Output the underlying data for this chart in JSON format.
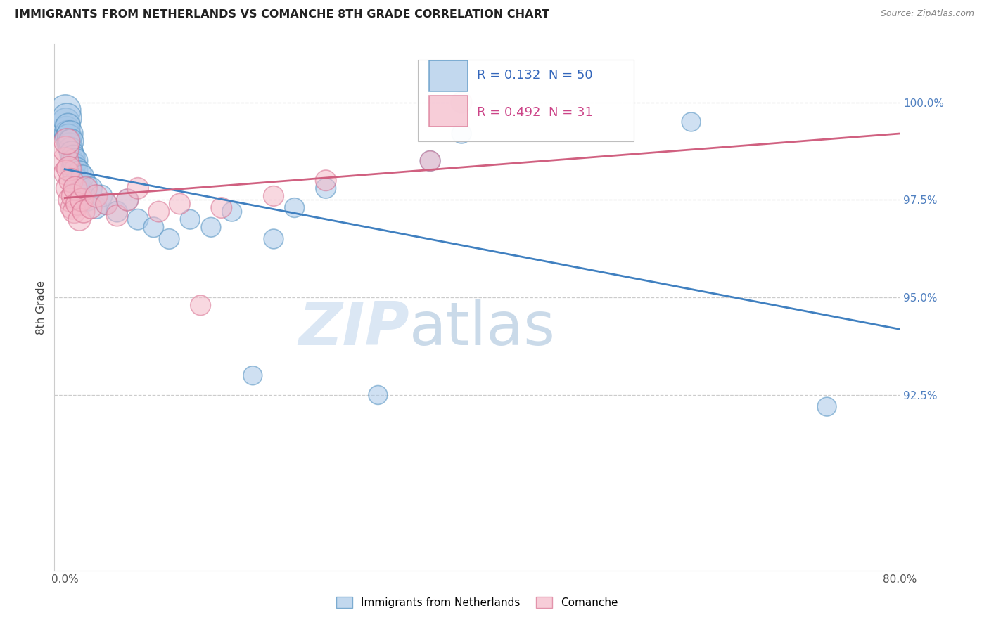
{
  "title": "IMMIGRANTS FROM NETHERLANDS VS COMANCHE 8TH GRADE CORRELATION CHART",
  "source": "Source: ZipAtlas.com",
  "ylabel": "8th Grade",
  "x_tick_labels": [
    "0.0%",
    "",
    "",
    "",
    "",
    "",
    "",
    "",
    "80.0%"
  ],
  "x_tick_vals": [
    0.0,
    10.0,
    20.0,
    30.0,
    40.0,
    50.0,
    60.0,
    70.0,
    80.0
  ],
  "y_tick_labels": [
    "100.0%",
    "97.5%",
    "95.0%",
    "92.5%"
  ],
  "y_tick_vals": [
    100.0,
    97.5,
    95.0,
    92.5
  ],
  "xlim": [
    -1.0,
    80.0
  ],
  "ylim": [
    88.0,
    101.5
  ],
  "blue_R": 0.132,
  "blue_N": 50,
  "pink_R": 0.492,
  "pink_N": 31,
  "blue_fill": "#a8c8e8",
  "pink_fill": "#f4b8c8",
  "blue_edge": "#5090c0",
  "pink_edge": "#d87090",
  "blue_line": "#4080c0",
  "pink_line": "#d06080",
  "legend_label_blue": "Immigrants from Netherlands",
  "legend_label_pink": "Comanche",
  "blue_x": [
    0.05,
    0.1,
    0.15,
    0.2,
    0.25,
    0.3,
    0.35,
    0.4,
    0.45,
    0.5,
    0.55,
    0.6,
    0.65,
    0.7,
    0.75,
    0.8,
    0.85,
    0.9,
    0.95,
    1.0,
    1.1,
    1.2,
    1.3,
    1.4,
    1.6,
    1.7,
    1.8,
    2.0,
    2.2,
    2.5,
    3.0,
    3.5,
    4.0,
    5.0,
    6.0,
    7.0,
    8.5,
    10.0,
    12.0,
    14.0,
    16.0,
    18.0,
    20.0,
    22.0,
    25.0,
    30.0,
    35.0,
    38.0,
    60.0,
    73.0
  ],
  "blue_y": [
    99.8,
    99.5,
    99.3,
    99.6,
    99.2,
    99.4,
    99.1,
    99.0,
    98.9,
    99.2,
    98.8,
    99.0,
    98.7,
    98.5,
    98.3,
    98.6,
    98.2,
    98.4,
    98.1,
    98.5,
    98.3,
    98.0,
    97.9,
    98.2,
    97.8,
    98.1,
    97.6,
    97.9,
    97.5,
    97.8,
    97.3,
    97.6,
    97.4,
    97.2,
    97.5,
    97.0,
    96.8,
    96.5,
    97.0,
    96.8,
    97.2,
    93.0,
    96.5,
    97.3,
    97.8,
    92.5,
    98.5,
    99.2,
    99.5,
    92.2
  ],
  "blue_sizes": [
    200,
    160,
    150,
    180,
    140,
    130,
    150,
    120,
    130,
    140,
    120,
    130,
    120,
    110,
    115,
    120,
    110,
    115,
    110,
    130,
    110,
    115,
    110,
    115,
    105,
    110,
    105,
    110,
    100,
    105,
    100,
    100,
    95,
    90,
    95,
    90,
    85,
    85,
    80,
    80,
    80,
    75,
    80,
    80,
    85,
    75,
    85,
    80,
    75,
    75
  ],
  "pink_x": [
    0.05,
    0.1,
    0.15,
    0.2,
    0.3,
    0.4,
    0.5,
    0.6,
    0.7,
    0.8,
    0.9,
    1.0,
    1.2,
    1.4,
    1.6,
    1.8,
    2.0,
    2.5,
    3.0,
    4.0,
    5.0,
    6.0,
    7.0,
    9.0,
    11.0,
    13.0,
    15.0,
    20.0,
    25.0,
    35.0,
    38.0
  ],
  "pink_y": [
    98.5,
    98.8,
    98.2,
    99.0,
    97.8,
    98.3,
    97.5,
    98.0,
    97.3,
    97.6,
    97.2,
    97.8,
    97.4,
    97.0,
    97.5,
    97.2,
    97.8,
    97.3,
    97.6,
    97.4,
    97.1,
    97.5,
    97.8,
    97.2,
    97.4,
    94.8,
    97.3,
    97.6,
    98.0,
    98.5,
    100.0
  ],
  "pink_sizes": [
    150,
    140,
    130,
    140,
    120,
    125,
    115,
    120,
    110,
    115,
    110,
    115,
    110,
    105,
    110,
    105,
    110,
    100,
    105,
    100,
    95,
    100,
    95,
    90,
    90,
    85,
    90,
    85,
    90,
    85,
    90
  ]
}
